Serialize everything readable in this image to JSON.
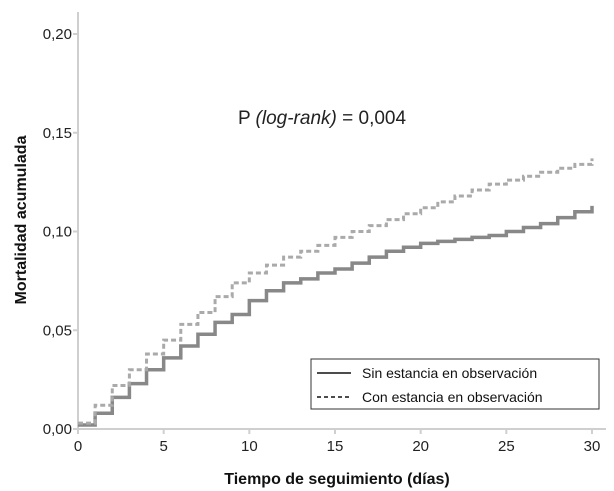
{
  "chart_data": {
    "type": "line",
    "step": true,
    "xlabel": "Tiempo de seguimiento (días)",
    "ylabel": "Mortalidad acumulada",
    "xlim": [
      0,
      30
    ],
    "ylim": [
      0,
      0.2
    ],
    "xticks": [
      "0",
      "5",
      "10",
      "15",
      "20",
      "25",
      "30"
    ],
    "yticks": [
      "0,00",
      "0,05",
      "0,10",
      "0,15",
      "0,20"
    ],
    "grid": false,
    "legend_position": "bottom-right",
    "annotation": {
      "prefix": "P ",
      "italic": "(log-rank)",
      "suffix": " = 0,004"
    },
    "series": [
      {
        "name": "Sin estancia en observación",
        "style": "solid",
        "color": "#888888",
        "x": [
          0,
          1,
          2,
          3,
          4,
          5,
          6,
          7,
          8,
          9,
          10,
          11,
          12,
          13,
          14,
          15,
          16,
          17,
          18,
          19,
          20,
          21,
          22,
          23,
          24,
          25,
          26,
          27,
          28,
          29,
          30
        ],
        "y": [
          0.002,
          0.008,
          0.016,
          0.023,
          0.03,
          0.036,
          0.042,
          0.048,
          0.054,
          0.058,
          0.065,
          0.07,
          0.074,
          0.076,
          0.079,
          0.081,
          0.084,
          0.087,
          0.09,
          0.092,
          0.094,
          0.095,
          0.096,
          0.097,
          0.098,
          0.1,
          0.102,
          0.104,
          0.107,
          0.11,
          0.113
        ]
      },
      {
        "name": "Con estancia en observación",
        "style": "dashed",
        "color": "#aaaaaa",
        "x": [
          0,
          1,
          2,
          3,
          4,
          5,
          6,
          7,
          8,
          9,
          10,
          11,
          12,
          13,
          14,
          15,
          16,
          17,
          18,
          19,
          20,
          21,
          22,
          23,
          24,
          25,
          26,
          27,
          28,
          29,
          30
        ],
        "y": [
          0.003,
          0.012,
          0.022,
          0.03,
          0.038,
          0.045,
          0.053,
          0.059,
          0.067,
          0.074,
          0.079,
          0.083,
          0.087,
          0.09,
          0.093,
          0.097,
          0.1,
          0.103,
          0.106,
          0.109,
          0.112,
          0.115,
          0.118,
          0.121,
          0.124,
          0.126,
          0.128,
          0.13,
          0.132,
          0.134,
          0.137
        ]
      }
    ]
  }
}
